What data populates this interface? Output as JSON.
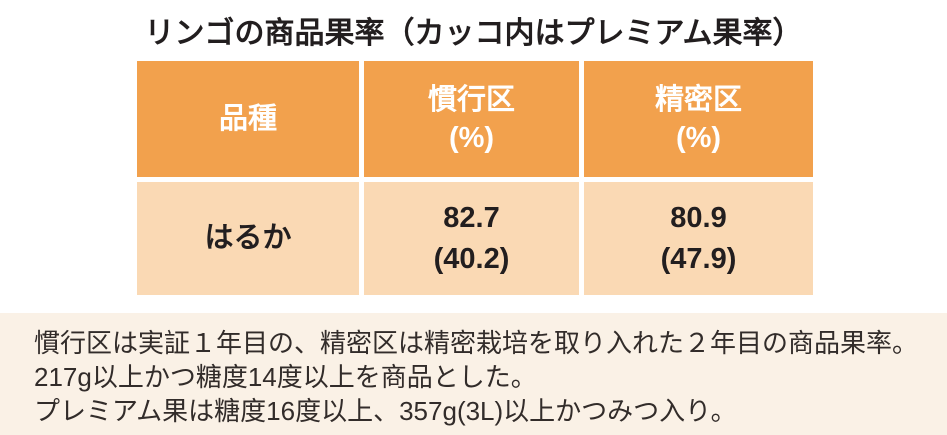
{
  "title": "リンゴの商品果率（カッコ内はプレミアム果率）",
  "table": {
    "headers": [
      {
        "label": "品種",
        "sub": ""
      },
      {
        "label": "慣行区",
        "sub": "(%)"
      },
      {
        "label": "精密区",
        "sub": "(%)"
      }
    ],
    "rows": [
      {
        "variety": "はるか",
        "values": [
          {
            "main": "82.7",
            "premium": "(40.2)"
          },
          {
            "main": "80.9",
            "premium": "(47.9)"
          }
        ]
      }
    ]
  },
  "notes": {
    "lines": [
      "慣行区は実証１年目の、精密区は精密栽培を取り入れた２年目の商品果率。",
      "217g以上かつ糖度14度以上を商品とした。",
      "プレミアム果は糖度16度以上、357g(3L)以上かつみつ入り。"
    ]
  },
  "colors": {
    "header_bg": "#F2A14D",
    "row_bg": "#FAD9B4",
    "notes_bg": "#FAF1E6",
    "header_text": "#FFFFFF",
    "body_text": "#221E1F"
  },
  "chart_data": {
    "type": "table",
    "title": "リンゴの商品果率（カッコ内はプレミアム果率）",
    "columns": [
      "品種",
      "慣行区（%）",
      "精密区（%）"
    ],
    "categories": [
      "はるか"
    ],
    "rows": [
      [
        "はるか",
        "82.7（40.2）",
        "80.9（47.9）"
      ]
    ],
    "series": [
      {
        "name": "慣行区 商品果率(%)",
        "values": [
          82.7
        ]
      },
      {
        "name": "慣行区 プレミアム果率(%)",
        "values": [
          40.2
        ]
      },
      {
        "name": "精密区 商品果率(%)",
        "values": [
          80.9
        ]
      },
      {
        "name": "精密区 プレミアム果率(%)",
        "values": [
          47.9
        ]
      }
    ],
    "notes": [
      "慣行区は実証１年目の、精密区は精密栽培を取り入れた２年目の商品果率。",
      "217g以上かつ糖度14度以上を商品とした。",
      "プレミアム果は糖度16度以上、357g(3L)以上かつみつ入り。"
    ]
  }
}
